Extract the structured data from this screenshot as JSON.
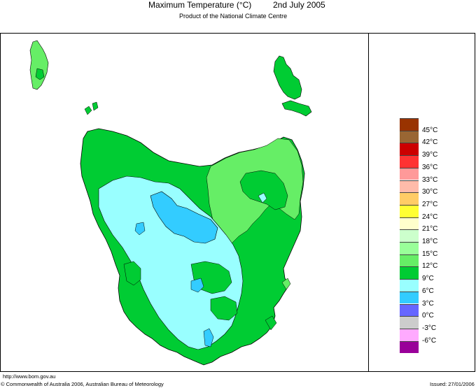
{
  "header": {
    "title": "Maximum Temperature (°C)",
    "date": "2nd July 2005",
    "subtitle": "Product of the National Climate Centre"
  },
  "legend": {
    "items": [
      {
        "label": "45°C",
        "color": "#993300"
      },
      {
        "label": "42°C",
        "color": "#996633"
      },
      {
        "label": "39°C",
        "color": "#cc0000"
      },
      {
        "label": "36°C",
        "color": "#ff3333"
      },
      {
        "label": "33°C",
        "color": "#ff9999"
      },
      {
        "label": "30°C",
        "color": "#ffbbaa"
      },
      {
        "label": "27°C",
        "color": "#ffcc66"
      },
      {
        "label": "24°C",
        "color": "#ffff33"
      },
      {
        "label": "21°C",
        "color": "#ffffcc"
      },
      {
        "label": "18°C",
        "color": "#ccffcc"
      },
      {
        "label": "15°C",
        "color": "#99ff99"
      },
      {
        "label": "12°C",
        "color": "#66ee66"
      },
      {
        "label": "9°C",
        "color": "#00cc33"
      },
      {
        "label": "6°C",
        "color": "#99ffff"
      },
      {
        "label": "3°C",
        "color": "#33ccff"
      },
      {
        "label": "0°C",
        "color": "#6666ff"
      },
      {
        "label": "-3°C",
        "color": "#cccccc"
      },
      {
        "label": "-6°C",
        "color": "#ffaaff"
      }
    ],
    "bottom_color": "#990099"
  },
  "map_colors": {
    "green_light": "#66ee66",
    "green": "#00cc33",
    "cyan": "#99ffff",
    "blue": "#33ccff"
  },
  "footer": {
    "url": "http://www.bom.gov.au",
    "copyright": "© Commonwealth of Australia 2006, Australian Bureau of Meteorology",
    "issued": "Issued: 27/01/2006"
  }
}
